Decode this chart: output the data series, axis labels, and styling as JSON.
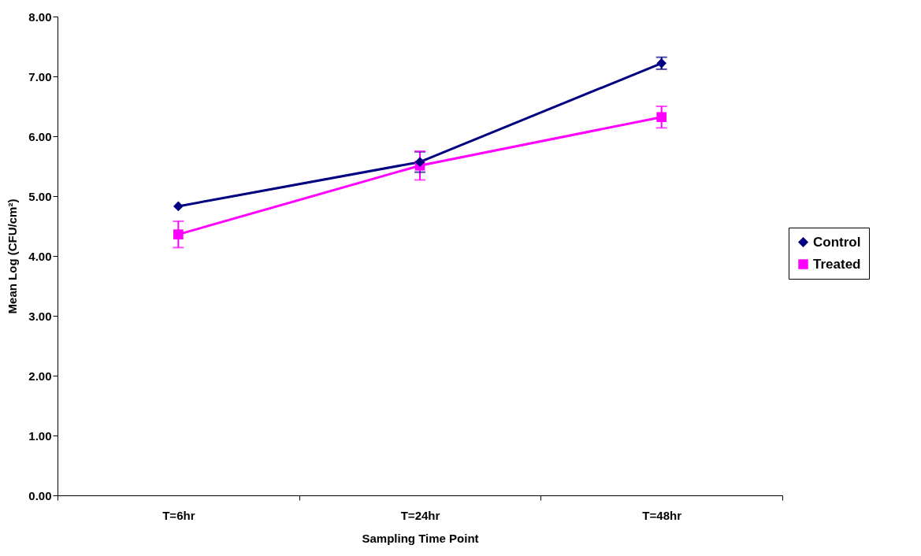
{
  "chart_data": {
    "type": "line",
    "xlabel": "Sampling Time Point",
    "ylabel": "Mean Log (CFU/cm²)",
    "categories": [
      "T=6hr",
      "T=24hr",
      "T=48hr"
    ],
    "series": [
      {
        "name": "Control",
        "color": "#000080",
        "marker": "diamond",
        "values": [
          4.83,
          5.57,
          7.22
        ],
        "errors": [
          null,
          0.17,
          0.1
        ]
      },
      {
        "name": "Treated",
        "color": "#ff00ff",
        "marker": "square",
        "values": [
          4.36,
          5.51,
          6.32
        ],
        "errors": [
          0.22,
          0.24,
          0.18
        ]
      }
    ],
    "ylim": [
      0,
      8
    ],
    "yticks": [
      {
        "value": 0,
        "label": "0.00"
      },
      {
        "value": 1,
        "label": "1.00"
      },
      {
        "value": 2,
        "label": "2.00"
      },
      {
        "value": 3,
        "label": "3.00"
      },
      {
        "value": 4,
        "label": "4.00"
      },
      {
        "value": 5,
        "label": "5.00"
      },
      {
        "value": 6,
        "label": "6.00"
      },
      {
        "value": 7,
        "label": "7.00"
      },
      {
        "value": 8,
        "label": "8.00"
      }
    ],
    "grid": false,
    "legend": "right",
    "line_style": "solid"
  }
}
